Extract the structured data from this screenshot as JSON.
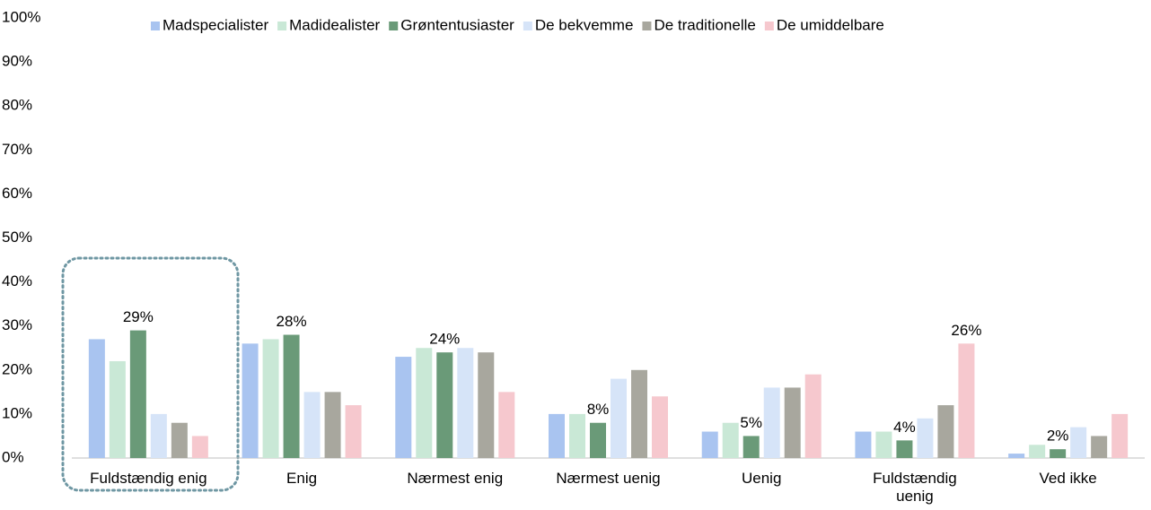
{
  "chart_data": {
    "type": "bar",
    "categories": [
      "Fuldstændig enig",
      "Enig",
      "Nærmest enig",
      "Nærmest uenig",
      "Uenig",
      "Fuldstændig uenig",
      "Ved ikke"
    ],
    "series": [
      {
        "name": "Madspecialister",
        "color": "#a9c4f0",
        "values": [
          27,
          26,
          23,
          10,
          6,
          6,
          1
        ]
      },
      {
        "name": "Madidealister",
        "color": "#c9e8d6",
        "values": [
          22,
          27,
          25,
          10,
          8,
          6,
          3
        ]
      },
      {
        "name": "Grøntentusiaster",
        "color": "#6a9a78",
        "values": [
          29,
          28,
          24,
          8,
          5,
          4,
          2
        ],
        "value_labels": [
          "29%",
          "28%",
          "24%",
          "8%",
          "5%",
          "4%",
          "2%"
        ]
      },
      {
        "name": "De bekvemme",
        "color": "#d6e4f8",
        "values": [
          10,
          15,
          25,
          18,
          16,
          9,
          7
        ]
      },
      {
        "name": "De traditionelle",
        "color": "#a8a79e",
        "values": [
          8,
          15,
          24,
          20,
          16,
          12,
          5
        ]
      },
      {
        "name": "De umiddelbare",
        "color": "#f6c8ce",
        "values": [
          5,
          12,
          15,
          14,
          19,
          26,
          10
        ],
        "value_labels": [
          null,
          null,
          null,
          null,
          null,
          "26%",
          null
        ]
      }
    ],
    "ylim": [
      0,
      100
    ],
    "yticks": [
      {
        "value": 0,
        "label": "0%"
      },
      {
        "value": 10,
        "label": "10%"
      },
      {
        "value": 20,
        "label": "20%"
      },
      {
        "value": 30,
        "label": "30%"
      },
      {
        "value": 40,
        "label": "40%"
      },
      {
        "value": 50,
        "label": "50%"
      },
      {
        "value": 60,
        "label": "60%"
      },
      {
        "value": 70,
        "label": "70%"
      },
      {
        "value": 80,
        "label": "80%"
      },
      {
        "value": 90,
        "label": "90%"
      },
      {
        "value": 100,
        "label": "100%"
      }
    ],
    "legend": "top"
  }
}
